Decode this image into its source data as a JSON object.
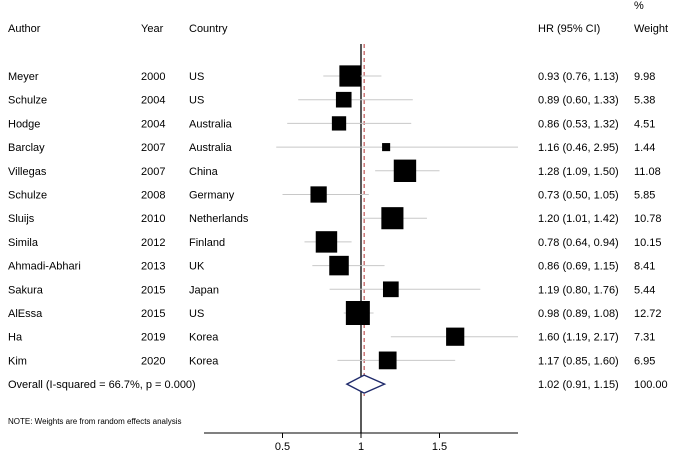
{
  "header": {
    "author": "Author",
    "year": "Year",
    "country": "Country",
    "hr": "HR (95% CI)",
    "weight_unit": "%",
    "weight": "Weight"
  },
  "note": "NOTE: Weights are from random effects analysis",
  "chart_data": {
    "type": "forest",
    "title": "",
    "xlabel": "",
    "ylabel": "",
    "x_ticks": [
      0.5,
      1,
      1.5
    ],
    "x_tick_labels": [
      "0.5",
      "1",
      "1.5"
    ],
    "x_range": [
      0,
      2.0
    ],
    "reference_line": 1,
    "overall_line": 1.02,
    "colors": {
      "marker": "#000000",
      "diamond": "#1f2a6b",
      "overall_line": "#b03030",
      "ci_line": "#c8c8c8"
    },
    "studies": [
      {
        "author": "Meyer",
        "year": "2000",
        "country": "US",
        "hr": 0.93,
        "lo": 0.76,
        "hi": 1.13,
        "hr_text": "0.93 (0.76, 1.13)",
        "weight": 9.98,
        "weight_text": "9.98"
      },
      {
        "author": "Schulze",
        "year": "2004",
        "country": "US",
        "hr": 0.89,
        "lo": 0.6,
        "hi": 1.33,
        "hr_text": "0.89 (0.60, 1.33)",
        "weight": 5.38,
        "weight_text": "5.38"
      },
      {
        "author": "Hodge",
        "year": "2004",
        "country": "Australia",
        "hr": 0.86,
        "lo": 0.53,
        "hi": 1.32,
        "hr_text": "0.86 (0.53, 1.32)",
        "weight": 4.51,
        "weight_text": "4.51"
      },
      {
        "author": "Barclay",
        "year": "2007",
        "country": "Australia",
        "hr": 1.16,
        "lo": 0.46,
        "hi": 2.95,
        "hr_text": "1.16 (0.46, 2.95)",
        "weight": 1.44,
        "weight_text": "1.44"
      },
      {
        "author": "Villegas",
        "year": "2007",
        "country": "China",
        "hr": 1.28,
        "lo": 1.09,
        "hi": 1.5,
        "hr_text": "1.28 (1.09, 1.50)",
        "weight": 11.08,
        "weight_text": "11.08"
      },
      {
        "author": "Schulze",
        "year": "2008",
        "country": "Germany",
        "hr": 0.73,
        "lo": 0.5,
        "hi": 1.05,
        "hr_text": "0.73 (0.50, 1.05)",
        "weight": 5.85,
        "weight_text": "5.85"
      },
      {
        "author": "Sluijs",
        "year": "2010",
        "country": "Netherlands",
        "hr": 1.2,
        "lo": 1.01,
        "hi": 1.42,
        "hr_text": "1.20 (1.01, 1.42)",
        "weight": 10.78,
        "weight_text": "10.78"
      },
      {
        "author": "Simila",
        "year": "2012",
        "country": "Finland",
        "hr": 0.78,
        "lo": 0.64,
        "hi": 0.94,
        "hr_text": "0.78 (0.64, 0.94)",
        "weight": 10.15,
        "weight_text": "10.15"
      },
      {
        "author": "Ahmadi-Abhari",
        "year": "2013",
        "country": "UK",
        "hr": 0.86,
        "lo": 0.69,
        "hi": 1.15,
        "hr_text": "0.86 (0.69, 1.15)",
        "weight": 8.41,
        "weight_text": "8.41"
      },
      {
        "author": "Sakura",
        "year": "2015",
        "country": "Japan",
        "hr": 1.19,
        "lo": 0.8,
        "hi": 1.76,
        "hr_text": "1.19 (0.80, 1.76)",
        "weight": 5.44,
        "weight_text": "5.44"
      },
      {
        "author": "AlEssa",
        "year": "2015",
        "country": "US",
        "hr": 0.98,
        "lo": 0.89,
        "hi": 1.08,
        "hr_text": "0.98 (0.89, 1.08)",
        "weight": 12.72,
        "weight_text": "12.72"
      },
      {
        "author": "Ha",
        "year": "2019",
        "country": "Korea",
        "hr": 1.6,
        "lo": 1.19,
        "hi": 2.17,
        "hr_text": "1.60 (1.19, 2.17)",
        "weight": 7.31,
        "weight_text": "7.31"
      },
      {
        "author": "Kim",
        "year": "2020",
        "country": "Korea",
        "hr": 1.17,
        "lo": 0.85,
        "hi": 1.6,
        "hr_text": "1.17 (0.85, 1.60)",
        "weight": 6.95,
        "weight_text": "6.95"
      }
    ],
    "overall": {
      "label": "Overall  (I-squared = 66.7%, p = 0.000)",
      "hr": 1.02,
      "lo": 0.91,
      "hi": 1.15,
      "hr_text": "1.02 (0.91, 1.15)",
      "weight": 100.0,
      "weight_text": "100.00"
    }
  }
}
